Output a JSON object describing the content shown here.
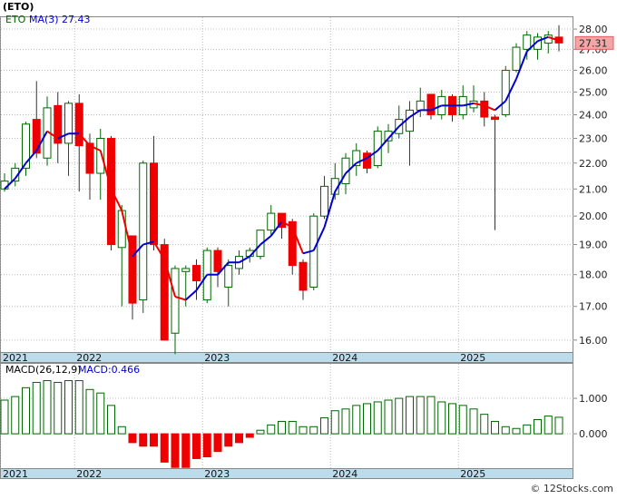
{
  "chart_data": [
    {
      "type": "candlestick",
      "title": "(ETO)",
      "source": "© 12Stocks.com",
      "categories": [
        "2021",
        null,
        null,
        null,
        null,
        null,
        null,
        "2022",
        null,
        null,
        null,
        null,
        null,
        null,
        null,
        null,
        null,
        null,
        null,
        "2023",
        null,
        null,
        null,
        null,
        null,
        null,
        null,
        null,
        null,
        null,
        null,
        "2024",
        null,
        null,
        null,
        null,
        null,
        null,
        null,
        null,
        null,
        null,
        null,
        "2025",
        null,
        null,
        null,
        null,
        null,
        null,
        null,
        null,
        null
      ],
      "series": [
        {
          "name": "ETO",
          "color": "#006600",
          "down_color": "#ee0000",
          "open": [
            21.0,
            21.3,
            21.8,
            23.8,
            22.2,
            24.4,
            22.8,
            24.5,
            22.8,
            21.6,
            23.0,
            18.9,
            19.3,
            17.2,
            22.0,
            19.0,
            16.2,
            18.1,
            18.3,
            17.2,
            18.8,
            17.6,
            18.2,
            18.6,
            18.6,
            19.5,
            20.1,
            19.8,
            18.4,
            17.6,
            20.0,
            20.8,
            21.2,
            21.9,
            22.4,
            21.9,
            22.9,
            23.2,
            23.3,
            24.2,
            24.9,
            24.0,
            24.8,
            24.0,
            24.3,
            24.6,
            23.9,
            24.0,
            26.0,
            27.0,
            27.0,
            27.3,
            27.6
          ],
          "high": [
            21.6,
            22.0,
            23.7,
            25.5,
            24.8,
            25.0,
            24.6,
            24.9,
            23.2,
            23.4,
            23.1,
            20.4,
            19.3,
            22.1,
            23.1,
            19.2,
            18.3,
            18.3,
            18.5,
            18.9,
            18.9,
            18.5,
            18.8,
            18.9,
            19.5,
            20.4,
            20.1,
            19.9,
            18.5,
            20.1,
            21.5,
            22.0,
            22.4,
            22.8,
            22.5,
            23.5,
            23.6,
            24.4,
            24.6,
            25.2,
            24.9,
            25.1,
            24.9,
            25.3,
            25.3,
            25.0,
            24.0,
            26.2,
            27.3,
            27.9,
            27.8,
            27.9,
            28.2
          ],
          "low": [
            20.9,
            21.1,
            21.5,
            22.2,
            21.9,
            22.0,
            21.5,
            20.9,
            20.6,
            20.6,
            18.8,
            17.0,
            16.6,
            16.8,
            18.8,
            16.0,
            15.6,
            17.0,
            17.2,
            17.1,
            17.6,
            17.0,
            18.0,
            18.4,
            18.5,
            19.3,
            19.2,
            18.0,
            17.2,
            17.5,
            19.9,
            20.6,
            20.8,
            21.5,
            21.6,
            21.8,
            22.4,
            23.0,
            21.9,
            23.9,
            23.8,
            23.8,
            23.7,
            23.8,
            24.1,
            23.5,
            19.5,
            23.9,
            25.9,
            26.5,
            26.5,
            26.8,
            26.9
          ],
          "close": [
            21.3,
            21.8,
            23.6,
            22.4,
            24.3,
            22.8,
            24.5,
            22.7,
            21.6,
            23.0,
            19.0,
            20.2,
            17.1,
            22.0,
            19.0,
            16.0,
            18.2,
            18.2,
            17.8,
            18.8,
            18.1,
            18.3,
            18.6,
            18.8,
            19.5,
            20.1,
            19.6,
            18.3,
            17.5,
            20.0,
            21.1,
            21.4,
            22.2,
            22.5,
            21.8,
            23.3,
            23.3,
            23.8,
            24.2,
            24.6,
            24.0,
            24.8,
            24.0,
            24.8,
            24.6,
            23.9,
            23.8,
            26.0,
            27.1,
            27.7,
            27.6,
            27.7,
            27.31
          ]
        },
        {
          "name": "MA(3)",
          "type": "line",
          "color": "#0000cc",
          "down_color": "#ee0000",
          "values": [
            21.0,
            21.4,
            22.0,
            22.5,
            23.3,
            23.0,
            23.2,
            23.2,
            22.7,
            22.5,
            21.0,
            20.2,
            18.6,
            19.0,
            19.1,
            18.5,
            17.3,
            17.2,
            17.5,
            18.0,
            18.0,
            18.4,
            18.4,
            18.6,
            19.0,
            19.3,
            19.8,
            19.6,
            18.7,
            18.8,
            19.6,
            20.9,
            21.6,
            22.0,
            22.2,
            22.5,
            23.0,
            23.5,
            23.9,
            24.2,
            24.2,
            24.4,
            24.4,
            24.4,
            24.5,
            24.4,
            24.2,
            24.6,
            25.6,
            26.9,
            27.4,
            27.6,
            27.43
          ]
        }
      ],
      "ylim": [
        15.66,
        28.65
      ],
      "log_scale": true,
      "grid": true,
      "yticks": [
        {
          "value": 16,
          "label": "16.00"
        },
        {
          "value": 17,
          "label": "17.00"
        },
        {
          "value": 18,
          "label": "18.00"
        },
        {
          "value": 19,
          "label": "19.00"
        },
        {
          "value": 20,
          "label": "20.00"
        },
        {
          "value": 21,
          "label": "21.00"
        },
        {
          "value": 22,
          "label": "22.00"
        },
        {
          "value": 23,
          "label": "23.00"
        },
        {
          "value": 24,
          "label": "24.00"
        },
        {
          "value": 25,
          "label": "25.00"
        },
        {
          "value": 26,
          "label": "26.00"
        },
        {
          "value": 27,
          "label": "27.00"
        },
        {
          "value": 28,
          "label": "28.00"
        }
      ]
    },
    {
      "type": "bar",
      "title": "MACD(26,12,9)",
      "categories": [
        "2021",
        null,
        null,
        null,
        null,
        null,
        null,
        "2022",
        null,
        null,
        null,
        null,
        null,
        null,
        null,
        null,
        null,
        null,
        null,
        "2023",
        null,
        null,
        null,
        null,
        null,
        null,
        null,
        null,
        null,
        null,
        null,
        "2024",
        null,
        null,
        null,
        null,
        null,
        null,
        null,
        null,
        null,
        null,
        null,
        "2025",
        null,
        null,
        null,
        null,
        null,
        null,
        null,
        null,
        null
      ],
      "series": [
        {
          "name": "MACD:0.466",
          "color": "#006600",
          "down_color": "#ee0000",
          "label_color": "#0000cc",
          "values": [
            0.95,
            1.05,
            1.3,
            1.45,
            1.5,
            1.45,
            1.5,
            1.5,
            1.25,
            1.15,
            0.8,
            0.2,
            -0.25,
            -0.35,
            -0.35,
            -0.8,
            -0.95,
            -0.95,
            -0.7,
            -0.65,
            -0.5,
            -0.35,
            -0.25,
            -0.1,
            0.1,
            0.25,
            0.35,
            0.35,
            0.2,
            0.2,
            0.45,
            0.65,
            0.7,
            0.8,
            0.85,
            0.9,
            0.95,
            1.0,
            1.05,
            1.05,
            1.05,
            0.9,
            0.85,
            0.8,
            0.7,
            0.55,
            0.35,
            0.2,
            0.15,
            0.25,
            0.4,
            0.5,
            0.466
          ]
        }
      ],
      "ylim": [
        -0.97,
        2.0
      ],
      "grid": true,
      "yticks": [
        {
          "value": 0,
          "label": "0.000"
        },
        {
          "value": 1,
          "label": "1.000"
        }
      ]
    }
  ]
}
